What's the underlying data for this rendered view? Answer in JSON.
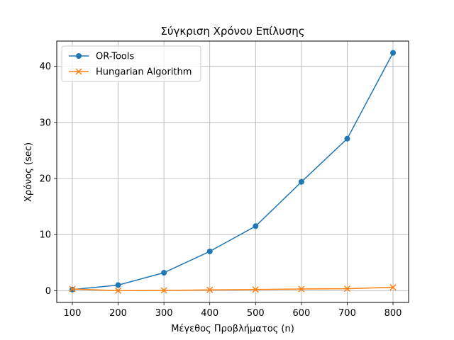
{
  "chart_data": {
    "type": "line",
    "title": "Σύγκριση Χρόνου Επίλυσης",
    "xlabel": "Μέγεθος Προβλήματος (n)",
    "ylabel": "Χρόνος (sec)",
    "x": [
      100,
      200,
      300,
      400,
      500,
      600,
      700,
      800
    ],
    "xlim": [
      66,
      834
    ],
    "ylim": [
      -2.1,
      44.5
    ],
    "xticks": [
      100,
      200,
      300,
      400,
      500,
      600,
      700,
      800
    ],
    "yticks": [
      0,
      10,
      20,
      30,
      40
    ],
    "grid": true,
    "legend_position": "top-left",
    "series": [
      {
        "name": "OR-Tools",
        "values": [
          0.2,
          1.0,
          3.2,
          7.0,
          11.5,
          19.4,
          27.1,
          42.4
        ],
        "color": "#1f77b4",
        "marker": "circle"
      },
      {
        "name": "Hungarian Algorithm",
        "values": [
          0.3,
          0.0,
          0.05,
          0.15,
          0.2,
          0.3,
          0.35,
          0.6
        ],
        "color": "#ff7f0e",
        "marker": "x"
      }
    ]
  }
}
